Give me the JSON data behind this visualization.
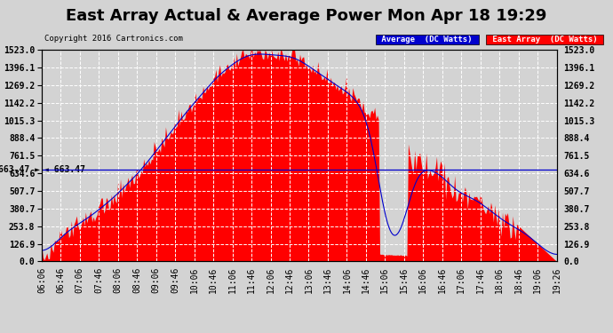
{
  "title": "East Array Actual & Average Power Mon Apr 18 19:29",
  "copyright": "Copyright 2016 Cartronics.com",
  "ymax": 1523.0,
  "ymin": 0.0,
  "yticks": [
    0.0,
    126.9,
    253.8,
    380.7,
    507.7,
    634.6,
    761.5,
    888.4,
    1015.3,
    1142.2,
    1269.2,
    1396.1,
    1523.0
  ],
  "ytick_labels": [
    "0.0",
    "126.9",
    "253.8",
    "380.7",
    "507.7",
    "634.6",
    "761.5",
    "888.4",
    "1015.3",
    "1142.2",
    "1269.2",
    "1396.1",
    "1523.0"
  ],
  "hline_value": 663.47,
  "hline_label": "663.47",
  "background_color": "#d3d3d3",
  "plot_bg_color": "#d3d3d3",
  "fill_color": "#ff0000",
  "avg_line_color": "#0000cd",
  "legend_avg_bg": "#0000cd",
  "legend_east_bg": "#ff0000",
  "legend_avg_text": "Average  (DC Watts)",
  "legend_east_text": "East Array  (DC Watts)",
  "title_fontsize": 13,
  "tick_fontsize": 7,
  "grid_color": "white",
  "grid_style": "--",
  "x_labels": [
    "06:06",
    "06:46",
    "07:06",
    "07:46",
    "08:06",
    "08:46",
    "09:06",
    "09:46",
    "10:06",
    "10:46",
    "11:06",
    "11:46",
    "12:06",
    "12:46",
    "13:06",
    "13:46",
    "14:06",
    "14:46",
    "15:06",
    "15:46",
    "16:06",
    "16:46",
    "17:06",
    "17:46",
    "18:06",
    "18:46",
    "19:06",
    "19:26"
  ]
}
